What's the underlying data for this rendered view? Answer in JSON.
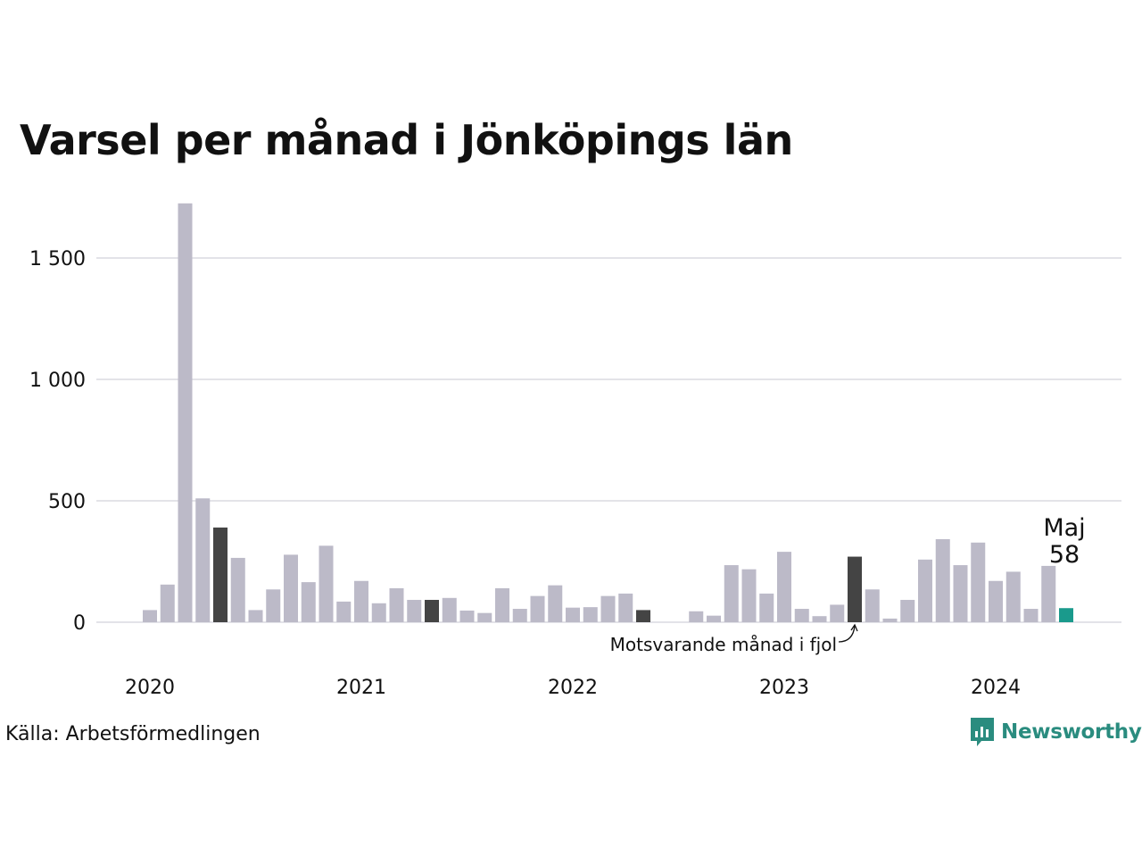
{
  "title": "Varsel per månad i Jönköpings län",
  "source": "Källa: Arbetsförmedlingen",
  "brand": "Newsworthy",
  "colors": {
    "bar": "#bcbac8",
    "highlight_same_month": "#444444",
    "current": "#1a9a8c",
    "grid": "#e3e3e8",
    "brand": "#2a8c7f"
  },
  "chart_data": {
    "type": "bar",
    "title": "Varsel per månad i Jönköpings län",
    "xlabel": "",
    "ylabel": "",
    "ylim": [
      0,
      1750
    ],
    "y_ticks": [
      0,
      500,
      1000,
      1500
    ],
    "y_tick_labels": [
      "0",
      "500",
      "1 000",
      "1 500"
    ],
    "x_year_labels": [
      {
        "label": "2020",
        "month_index": 0
      },
      {
        "label": "2021",
        "month_index": 12
      },
      {
        "label": "2022",
        "month_index": 24
      },
      {
        "label": "2023",
        "month_index": 36
      },
      {
        "label": "2024",
        "month_index": 48
      }
    ],
    "grid": true,
    "start": "2020-01",
    "values": [
      50,
      155,
      1725,
      510,
      390,
      265,
      50,
      135,
      278,
      165,
      315,
      85,
      170,
      78,
      140,
      92,
      92,
      100,
      48,
      38,
      140,
      55,
      108,
      152,
      60,
      62,
      108,
      118,
      50,
      0,
      0,
      45,
      27,
      235,
      218,
      118,
      290,
      55,
      25,
      72,
      270,
      135,
      15,
      92,
      258,
      342,
      235,
      328,
      170,
      208,
      55,
      232,
      58
    ],
    "highlight_same_month_indices": [
      4,
      16,
      28,
      40
    ],
    "current_index": 52,
    "current_label": {
      "month": "Maj",
      "value": "58"
    },
    "annotation": "Motsvarande månad i fjol"
  }
}
